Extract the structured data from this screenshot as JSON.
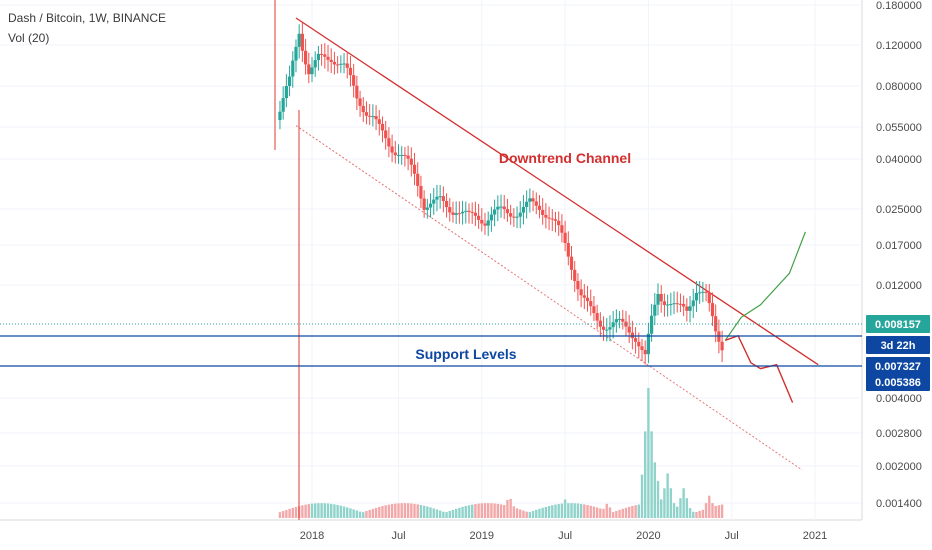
{
  "header": {
    "symbol_line": "Dash / Bitcoin, 1W, BINANCE",
    "indicator_line": "Vol (20)"
  },
  "chart_data": {
    "type": "candlestick",
    "symbol": "Dash / Bitcoin",
    "interval": "1W",
    "exchange": "BINANCE",
    "scale": "log",
    "y_ticks": [
      "0.180000",
      "0.120000",
      "0.080000",
      "0.055000",
      "0.040000",
      "0.025000",
      "0.017000",
      "0.012000",
      "0.004000",
      "0.002800",
      "0.002000",
      "0.001400"
    ],
    "x_ticks": [
      "2018",
      "Jul",
      "2019",
      "Jul",
      "2020",
      "Jul",
      "2021"
    ],
    "price_tags": [
      {
        "text": "0.008157",
        "color": "#26a69a"
      },
      {
        "text": "3d 22h",
        "color": "#0d47a1"
      },
      {
        "text": "0.007327",
        "color": "#0d47a1"
      },
      {
        "text": "0.005386",
        "color": "#0d47a1"
      }
    ],
    "annotations": [
      {
        "text": "Downtrend Channel",
        "color": "#d32f2f"
      },
      {
        "text": "Support Levels",
        "color": "#0d47a1"
      }
    ],
    "channel": {
      "upper": [
        [
          "2017-11-20",
          0.104
        ],
        [
          "2021-01-04",
          0.0065
        ]
      ],
      "lower": [
        [
          "2017-11-20",
          0.044
        ],
        [
          "2020-11-30",
          0.0028
        ]
      ]
    },
    "support_levels": [
      0.007327,
      0.005386
    ],
    "projection_up": [
      [
        "2020-06-15",
        0.0079
      ],
      [
        "2020-07-20",
        0.0095
      ],
      [
        "2020-08-31",
        0.0105
      ],
      [
        "2020-11-02",
        0.0135
      ],
      [
        "2020-12-07",
        0.0188
      ]
    ],
    "projection_down": [
      [
        "2020-06-15",
        0.0079
      ],
      [
        "2020-07-13",
        0.0082
      ],
      [
        "2020-08-10",
        0.0066
      ],
      [
        "2020-08-31",
        0.0063
      ],
      [
        "2020-10-05",
        0.0065
      ],
      [
        "2020-11-09",
        0.0048
      ]
    ],
    "closes": [
      [
        "2017-10-16",
        0.046
      ],
      [
        "2017-11-06",
        0.06
      ],
      [
        "2017-11-27",
        0.098
      ],
      [
        "2017-12-18",
        0.075
      ],
      [
        "2018-01-08",
        0.08
      ],
      [
        "2018-02-05",
        0.075
      ],
      [
        "2018-03-05",
        0.065
      ],
      [
        "2018-04-02",
        0.052
      ],
      [
        "2018-05-07",
        0.05
      ],
      [
        "2018-06-04",
        0.043
      ],
      [
        "2018-07-02",
        0.036
      ],
      [
        "2018-08-06",
        0.027
      ],
      [
        "2018-08-27",
        0.022
      ],
      [
        "2018-10-01",
        0.025
      ],
      [
        "2018-11-05",
        0.025
      ],
      [
        "2018-12-03",
        0.021
      ],
      [
        "2019-01-07",
        0.019
      ],
      [
        "2019-02-04",
        0.021
      ],
      [
        "2019-03-11",
        0.024
      ],
      [
        "2019-04-15",
        0.025
      ],
      [
        "2019-05-06",
        0.023
      ],
      [
        "2019-06-03",
        0.019
      ],
      [
        "2019-07-01",
        0.016
      ],
      [
        "2019-08-05",
        0.012
      ],
      [
        "2019-09-02",
        0.0105
      ],
      [
        "2019-10-07",
        0.0088
      ],
      [
        "2019-11-04",
        0.0082
      ],
      [
        "2019-12-02",
        0.0077
      ],
      [
        "2019-12-23",
        0.0069
      ],
      [
        "2020-01-06",
        0.0098
      ],
      [
        "2020-01-20",
        0.0128
      ],
      [
        "2020-02-10",
        0.0118
      ],
      [
        "2020-03-02",
        0.0102
      ],
      [
        "2020-03-23",
        0.0095
      ],
      [
        "2020-04-13",
        0.011
      ],
      [
        "2020-05-04",
        0.0105
      ],
      [
        "2020-05-25",
        0.0086
      ],
      [
        "2020-06-08",
        0.0082
      ]
    ],
    "volume": [
      [
        "2017-11-20",
        0.0015
      ],
      [
        "2018-03-01",
        0.002
      ],
      [
        "2018-07-01",
        0.002
      ],
      [
        "2018-12-01",
        0.003
      ],
      [
        "2019-03-01",
        0.006
      ],
      [
        "2019-07-01",
        0.005
      ],
      [
        "2019-10-01",
        0.004
      ],
      [
        "2019-12-30",
        0.035
      ],
      [
        "2020-01-13",
        0.015
      ],
      [
        "2020-02-10",
        0.012
      ],
      [
        "2020-03-16",
        0.008
      ],
      [
        "2020-05-11",
        0.006
      ]
    ]
  }
}
